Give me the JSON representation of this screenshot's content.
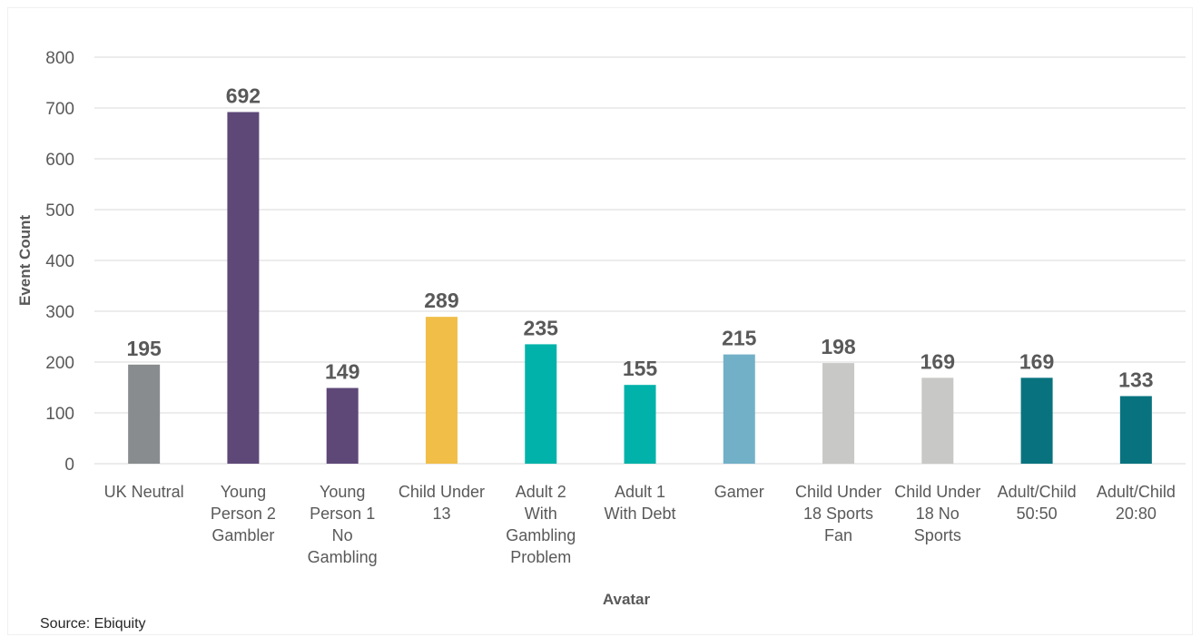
{
  "chart_data": {
    "type": "bar",
    "title": "",
    "xlabel": "Avatar",
    "ylabel": "Event Count",
    "ylim": [
      0,
      800
    ],
    "yticks": [
      0,
      100,
      200,
      300,
      400,
      500,
      600,
      700,
      800
    ],
    "grid": true,
    "legend": "none",
    "categories": [
      [
        "UK Neutral"
      ],
      [
        "Young",
        "Person 2",
        "Gambler"
      ],
      [
        "Young",
        "Person 1",
        "No",
        "Gambling"
      ],
      [
        "Child Under",
        "13"
      ],
      [
        "Adult 2",
        "With",
        "Gambling",
        "Problem"
      ],
      [
        "Adult 1",
        "With Debt"
      ],
      [
        "Gamer"
      ],
      [
        "Child Under",
        "18 Sports",
        "Fan"
      ],
      [
        "Child Under",
        "18 No",
        "Sports"
      ],
      [
        "Adult/Child",
        "50:50"
      ],
      [
        "Adult/Child",
        "20:80"
      ]
    ],
    "values": [
      195,
      692,
      149,
      289,
      235,
      155,
      215,
      198,
      169,
      169,
      133
    ],
    "colors": [
      "#898c8e",
      "#5e4878",
      "#5e4878",
      "#f1be48",
      "#00b2a9",
      "#00b2a9",
      "#72b0c8",
      "#c8c8c6",
      "#c8c8c6",
      "#08737f",
      "#08737f"
    ]
  },
  "source": "Source: Ebiquity"
}
